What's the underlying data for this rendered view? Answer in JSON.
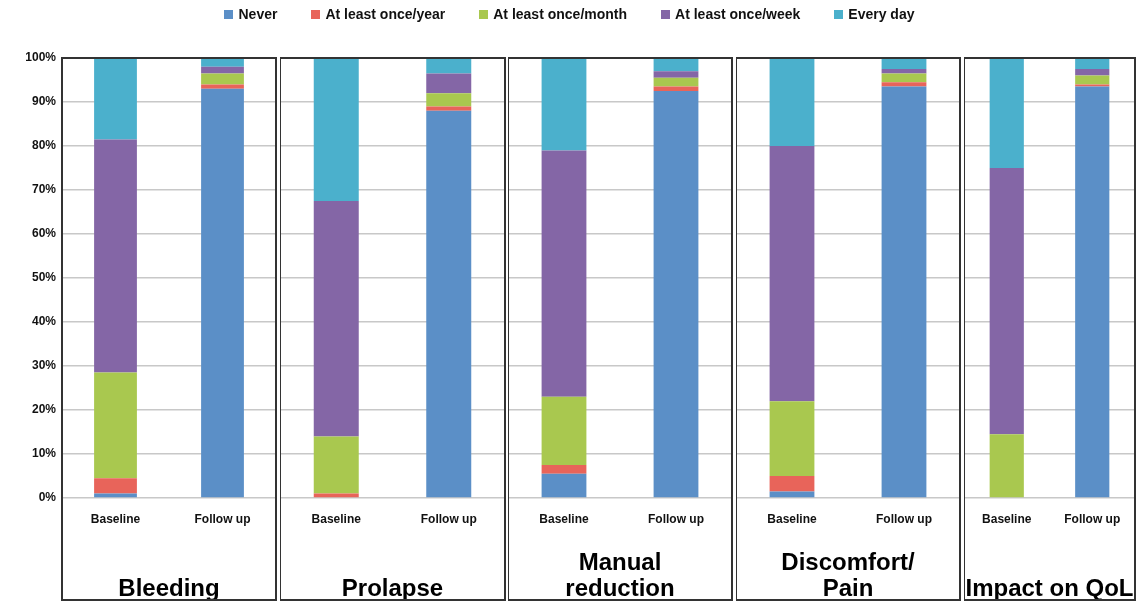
{
  "chart_data": [
    {
      "type": "bar",
      "stacked": true,
      "xlabel": "Bleeding",
      "categories": [
        "Baseline",
        "Follow up"
      ],
      "ylim": [
        0,
        100
      ],
      "yticks": [
        {
          "value": 0,
          "label": "0%"
        },
        {
          "value": 10,
          "label": "10%"
        },
        {
          "value": 20,
          "label": "20%"
        },
        {
          "value": 30,
          "label": "30%"
        },
        {
          "value": 40,
          "label": "40%"
        },
        {
          "value": 50,
          "label": "50%"
        },
        {
          "value": 60,
          "label": "60%"
        },
        {
          "value": 70,
          "label": "70%"
        },
        {
          "value": 80,
          "label": "80%"
        },
        {
          "value": 90,
          "label": "90%"
        },
        {
          "value": 100,
          "label": "100%"
        }
      ],
      "grid": "y",
      "legend": "top",
      "series": [
        {
          "name": "Never",
          "color": "#5b8fc7",
          "values": [
            1,
            93
          ]
        },
        {
          "name": "At least once/year",
          "color": "#e8645a",
          "values": [
            3.5,
            1
          ]
        },
        {
          "name": "At least once/month",
          "color": "#a9c84f",
          "values": [
            24,
            2.5
          ]
        },
        {
          "name": "At least once/week",
          "color": "#8466a6",
          "values": [
            53,
            1.5
          ]
        },
        {
          "name": "Every day",
          "color": "#4bb0cc",
          "values": [
            18.5,
            2
          ]
        }
      ]
    },
    {
      "type": "bar",
      "stacked": true,
      "xlabel": "Prolapse",
      "categories": [
        "Baseline",
        "Follow up"
      ],
      "ylim": [
        0,
        100
      ],
      "yticks": [
        0,
        10,
        20,
        30,
        40,
        50,
        60,
        70,
        80,
        90,
        100
      ],
      "grid": "y",
      "tick_labels": "x",
      "series": [
        {
          "color": "#5b8fc7",
          "values": [
            0,
            88
          ]
        },
        {
          "color": "#e8645a",
          "values": [
            1,
            1
          ]
        },
        {
          "color": "#a9c84f",
          "values": [
            13,
            3
          ]
        },
        {
          "color": "#8466a6",
          "values": [
            53.5,
            4.5
          ]
        },
        {
          "color": "#4bb0cc",
          "values": [
            32.5,
            3.5
          ]
        }
      ]
    },
    {
      "type": "bar",
      "stacked": true,
      "xlabel": "Manual reduction",
      "categories": [
        "Baseline",
        "Follow up"
      ],
      "ylim": [
        0,
        100
      ],
      "yticks": [
        0,
        10,
        20,
        30,
        40,
        50,
        60,
        70,
        80,
        90,
        100
      ],
      "grid": "y",
      "tick_labels": "x",
      "series": [
        {
          "color": "#5b8fc7",
          "values": [
            5.5,
            92.5
          ]
        },
        {
          "color": "#e8645a",
          "values": [
            2,
            1
          ]
        },
        {
          "color": "#a9c84f",
          "values": [
            15.5,
            2
          ]
        },
        {
          "color": "#8466a6",
          "values": [
            56,
            1.5
          ]
        },
        {
          "color": "#4bb0cc",
          "values": [
            21,
            3
          ]
        }
      ]
    },
    {
      "type": "bar",
      "stacked": true,
      "xlabel": "Discomfort/ Pain",
      "categories": [
        "Baseline",
        "Follow up"
      ],
      "ylim": [
        0,
        100
      ],
      "yticks": [
        0,
        10,
        20,
        30,
        40,
        50,
        60,
        70,
        80,
        90,
        100
      ],
      "grid": "y",
      "tick_labels": "x",
      "series": [
        {
          "color": "#5b8fc7",
          "values": [
            1.5,
            93.5
          ]
        },
        {
          "color": "#e8645a",
          "values": [
            3.5,
            1
          ]
        },
        {
          "color": "#a9c84f",
          "values": [
            17,
            2
          ]
        },
        {
          "color": "#8466a6",
          "values": [
            58,
            1
          ]
        },
        {
          "color": "#4bb0cc",
          "values": [
            20,
            2.5
          ]
        }
      ]
    },
    {
      "type": "bar",
      "stacked": true,
      "xlabel": "Impact on QoL",
      "categories": [
        "Baseline",
        "Follow up"
      ],
      "ylim": [
        0,
        100
      ],
      "yticks": [
        0,
        10,
        20,
        30,
        40,
        50,
        60,
        70,
        80,
        90,
        100
      ],
      "grid": "y",
      "tick_labels": "x",
      "series": [
        {
          "color": "#5b8fc7",
          "values": [
            0,
            93.5
          ]
        },
        {
          "color": "#e8645a",
          "values": [
            0,
            0.5
          ]
        },
        {
          "color": "#a9c84f",
          "values": [
            14.5,
            2
          ]
        },
        {
          "color": "#8466a6",
          "values": [
            60.5,
            1.5
          ]
        },
        {
          "color": "#4bb0cc",
          "values": [
            25,
            2.5
          ]
        }
      ]
    }
  ]
}
